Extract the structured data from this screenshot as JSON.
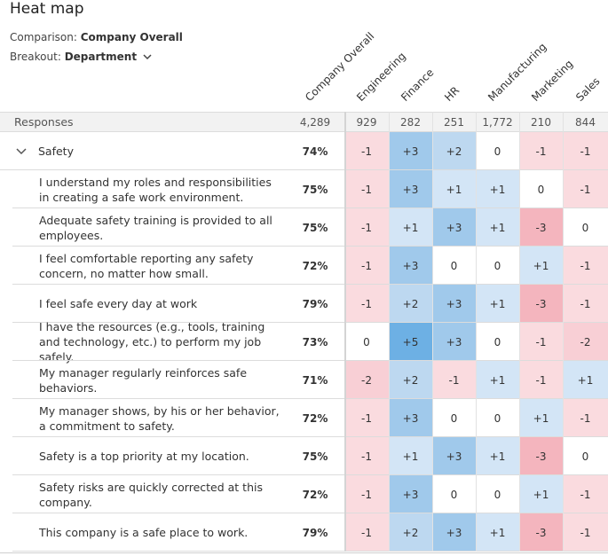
{
  "header": {
    "title": "Heat map",
    "comparison": {
      "label": "Comparison:",
      "value": "Company Overall"
    },
    "breakout": {
      "label": "Breakout:",
      "value": "Department"
    }
  },
  "table": {
    "columns": [
      "Company Overall",
      "Engineering",
      "Finance",
      "HR",
      "Manufacturing",
      "Marketing",
      "Sales"
    ],
    "responses": {
      "label": "Responses",
      "values": [
        "4,289",
        "929",
        "282",
        "251",
        "1,772",
        "210",
        "844"
      ]
    },
    "rows": [
      {
        "label": "Safety",
        "values": [
          "74%",
          "-1",
          "+3",
          "+2",
          "0",
          "-1",
          "-1"
        ]
      },
      {
        "label": "I understand my roles and responsibilities in creating a safe work environment.",
        "values": [
          "75%",
          "-1",
          "+3",
          "+1",
          "+1",
          "0",
          "-1"
        ]
      },
      {
        "label": "Adequate safety training is provided to all employees.",
        "values": [
          "75%",
          "-1",
          "+1",
          "+3",
          "+1",
          "-3",
          "0"
        ]
      },
      {
        "label": "I feel comfortable reporting any safety concern, no matter how small.",
        "values": [
          "72%",
          "-1",
          "+3",
          "0",
          "0",
          "+1",
          "-1"
        ]
      },
      {
        "label": "I feel safe every day at work",
        "values": [
          "79%",
          "-1",
          "+2",
          "+3",
          "+1",
          "-3",
          "-1"
        ]
      },
      {
        "label": "I have the resources (e.g., tools, training and technology, etc.) to perform my job safely.",
        "values": [
          "73%",
          "0",
          "+5",
          "+3",
          "0",
          "-1",
          "-2"
        ]
      },
      {
        "label": "My manager regularly reinforces safe behaviors.",
        "values": [
          "71%",
          "-2",
          "+2",
          "-1",
          "+1",
          "-1",
          "+1"
        ]
      },
      {
        "label": "My manager shows, by his or her behavior, a commitment to safety.",
        "values": [
          "72%",
          "-1",
          "+3",
          "0",
          "0",
          "+1",
          "-1"
        ]
      },
      {
        "label": "Safety is a top priority at my location.",
        "values": [
          "75%",
          "-1",
          "+1",
          "+3",
          "+1",
          "-3",
          "0"
        ]
      },
      {
        "label": "Safety risks are quickly corrected at this company.",
        "values": [
          "72%",
          "-1",
          "+3",
          "0",
          "0",
          "+1",
          "-1"
        ]
      },
      {
        "label": "This company is a safe place to work.",
        "values": [
          "79%",
          "-1",
          "+2",
          "+3",
          "+1",
          "-3",
          "-1"
        ]
      }
    ]
  }
}
